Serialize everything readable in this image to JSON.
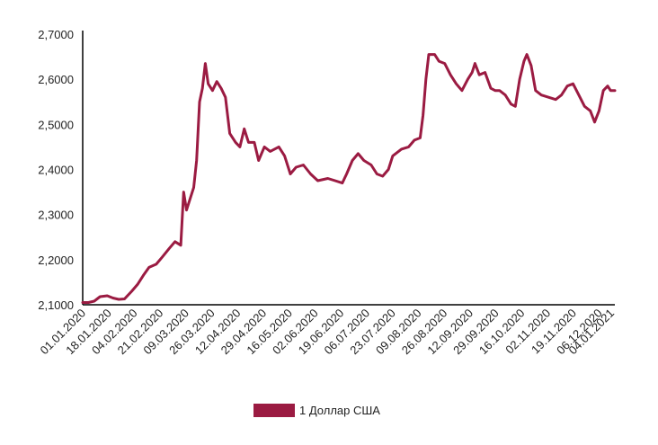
{
  "chart_data": {
    "type": "line",
    "title": "",
    "xlabel": "",
    "ylabel": "",
    "ylim": [
      2.1,
      2.7
    ],
    "grid": false,
    "legend": {
      "position": "bottom"
    },
    "y_ticks": [
      "2,1000",
      "2,2000",
      "2,3000",
      "2,4000",
      "2,5000",
      "2,6000",
      "2,7000"
    ],
    "y_tick_values": [
      2.1,
      2.2,
      2.3,
      2.4,
      2.5,
      2.6,
      2.7
    ],
    "x_ticks": [
      "01.01.2020",
      "18.01.2020",
      "04.02.2020",
      "21.02.2020",
      "09.03.2020",
      "26.03.2020",
      "12.04.2020",
      "29.04.2020",
      "16.05.2020",
      "02.06.2020",
      "19.06.2020",
      "06.07.2020",
      "23.07.2020",
      "09.08.2020",
      "26.08.2020",
      "12.09.2020",
      "29.09.2020",
      "16.10.2020",
      "02.11.2020",
      "19.11.2020",
      "06.12.2020",
      "04.01.2021"
    ],
    "x_range": [
      "2020-01-01",
      "2021-01-04"
    ],
    "series": [
      {
        "name": "1 Доллар США",
        "color": "#9b1b42",
        "points": [
          [
            "2020-01-01",
            2.105
          ],
          [
            "2020-01-05",
            2.105
          ],
          [
            "2020-01-09",
            2.108
          ],
          [
            "2020-01-13",
            2.118
          ],
          [
            "2020-01-18",
            2.12
          ],
          [
            "2020-01-22",
            2.115
          ],
          [
            "2020-01-26",
            2.112
          ],
          [
            "2020-01-30",
            2.113
          ],
          [
            "2020-02-04",
            2.13
          ],
          [
            "2020-02-08",
            2.145
          ],
          [
            "2020-02-12",
            2.165
          ],
          [
            "2020-02-16",
            2.183
          ],
          [
            "2020-02-21",
            2.19
          ],
          [
            "2020-02-25",
            2.205
          ],
          [
            "2020-03-01",
            2.225
          ],
          [
            "2020-03-05",
            2.24
          ],
          [
            "2020-03-09",
            2.232
          ],
          [
            "2020-03-11",
            2.35
          ],
          [
            "2020-03-13",
            2.31
          ],
          [
            "2020-03-16",
            2.34
          ],
          [
            "2020-03-18",
            2.36
          ],
          [
            "2020-03-20",
            2.42
          ],
          [
            "2020-03-22",
            2.55
          ],
          [
            "2020-03-24",
            2.58
          ],
          [
            "2020-03-26",
            2.635
          ],
          [
            "2020-03-28",
            2.59
          ],
          [
            "2020-03-31",
            2.575
          ],
          [
            "2020-04-03",
            2.595
          ],
          [
            "2020-04-06",
            2.58
          ],
          [
            "2020-04-09",
            2.56
          ],
          [
            "2020-04-12",
            2.48
          ],
          [
            "2020-04-16",
            2.46
          ],
          [
            "2020-04-19",
            2.45
          ],
          [
            "2020-04-22",
            2.49
          ],
          [
            "2020-04-25",
            2.46
          ],
          [
            "2020-04-29",
            2.46
          ],
          [
            "2020-05-02",
            2.42
          ],
          [
            "2020-05-06",
            2.45
          ],
          [
            "2020-05-10",
            2.44
          ],
          [
            "2020-05-16",
            2.45
          ],
          [
            "2020-05-20",
            2.43
          ],
          [
            "2020-05-24",
            2.39
          ],
          [
            "2020-05-28",
            2.405
          ],
          [
            "2020-06-02",
            2.41
          ],
          [
            "2020-06-07",
            2.39
          ],
          [
            "2020-06-12",
            2.375
          ],
          [
            "2020-06-19",
            2.38
          ],
          [
            "2020-06-24",
            2.375
          ],
          [
            "2020-06-29",
            2.37
          ],
          [
            "2020-07-02",
            2.39
          ],
          [
            "2020-07-06",
            2.42
          ],
          [
            "2020-07-10",
            2.435
          ],
          [
            "2020-07-14",
            2.42
          ],
          [
            "2020-07-19",
            2.41
          ],
          [
            "2020-07-23",
            2.39
          ],
          [
            "2020-07-27",
            2.385
          ],
          [
            "2020-07-31",
            2.4
          ],
          [
            "2020-08-03",
            2.43
          ],
          [
            "2020-08-09",
            2.445
          ],
          [
            "2020-08-14",
            2.45
          ],
          [
            "2020-08-18",
            2.465
          ],
          [
            "2020-08-22",
            2.47
          ],
          [
            "2020-08-24",
            2.52
          ],
          [
            "2020-08-26",
            2.6
          ],
          [
            "2020-08-28",
            2.655
          ],
          [
            "2020-09-01",
            2.655
          ],
          [
            "2020-09-04",
            2.64
          ],
          [
            "2020-09-08",
            2.635
          ],
          [
            "2020-09-12",
            2.61
          ],
          [
            "2020-09-16",
            2.59
          ],
          [
            "2020-09-20",
            2.575
          ],
          [
            "2020-09-24",
            2.6
          ],
          [
            "2020-09-27",
            2.615
          ],
          [
            "2020-09-29",
            2.635
          ],
          [
            "2020-10-02",
            2.61
          ],
          [
            "2020-10-06",
            2.615
          ],
          [
            "2020-10-10",
            2.58
          ],
          [
            "2020-10-13",
            2.575
          ],
          [
            "2020-10-16",
            2.575
          ],
          [
            "2020-10-20",
            2.565
          ],
          [
            "2020-10-24",
            2.545
          ],
          [
            "2020-10-27",
            2.54
          ],
          [
            "2020-10-30",
            2.6
          ],
          [
            "2020-11-02",
            2.64
          ],
          [
            "2020-11-04",
            2.655
          ],
          [
            "2020-11-07",
            2.63
          ],
          [
            "2020-11-10",
            2.575
          ],
          [
            "2020-11-14",
            2.565
          ],
          [
            "2020-11-19",
            2.56
          ],
          [
            "2020-11-24",
            2.555
          ],
          [
            "2020-11-28",
            2.565
          ],
          [
            "2020-12-02",
            2.585
          ],
          [
            "2020-12-06",
            2.59
          ],
          [
            "2020-12-10",
            2.565
          ],
          [
            "2020-12-14",
            2.54
          ],
          [
            "2020-12-18",
            2.53
          ],
          [
            "2020-12-21",
            2.505
          ],
          [
            "2020-12-24",
            2.53
          ],
          [
            "2020-12-27",
            2.575
          ],
          [
            "2020-12-30",
            2.585
          ],
          [
            "2021-01-01",
            2.575
          ],
          [
            "2021-01-04",
            2.575
          ]
        ]
      }
    ]
  }
}
